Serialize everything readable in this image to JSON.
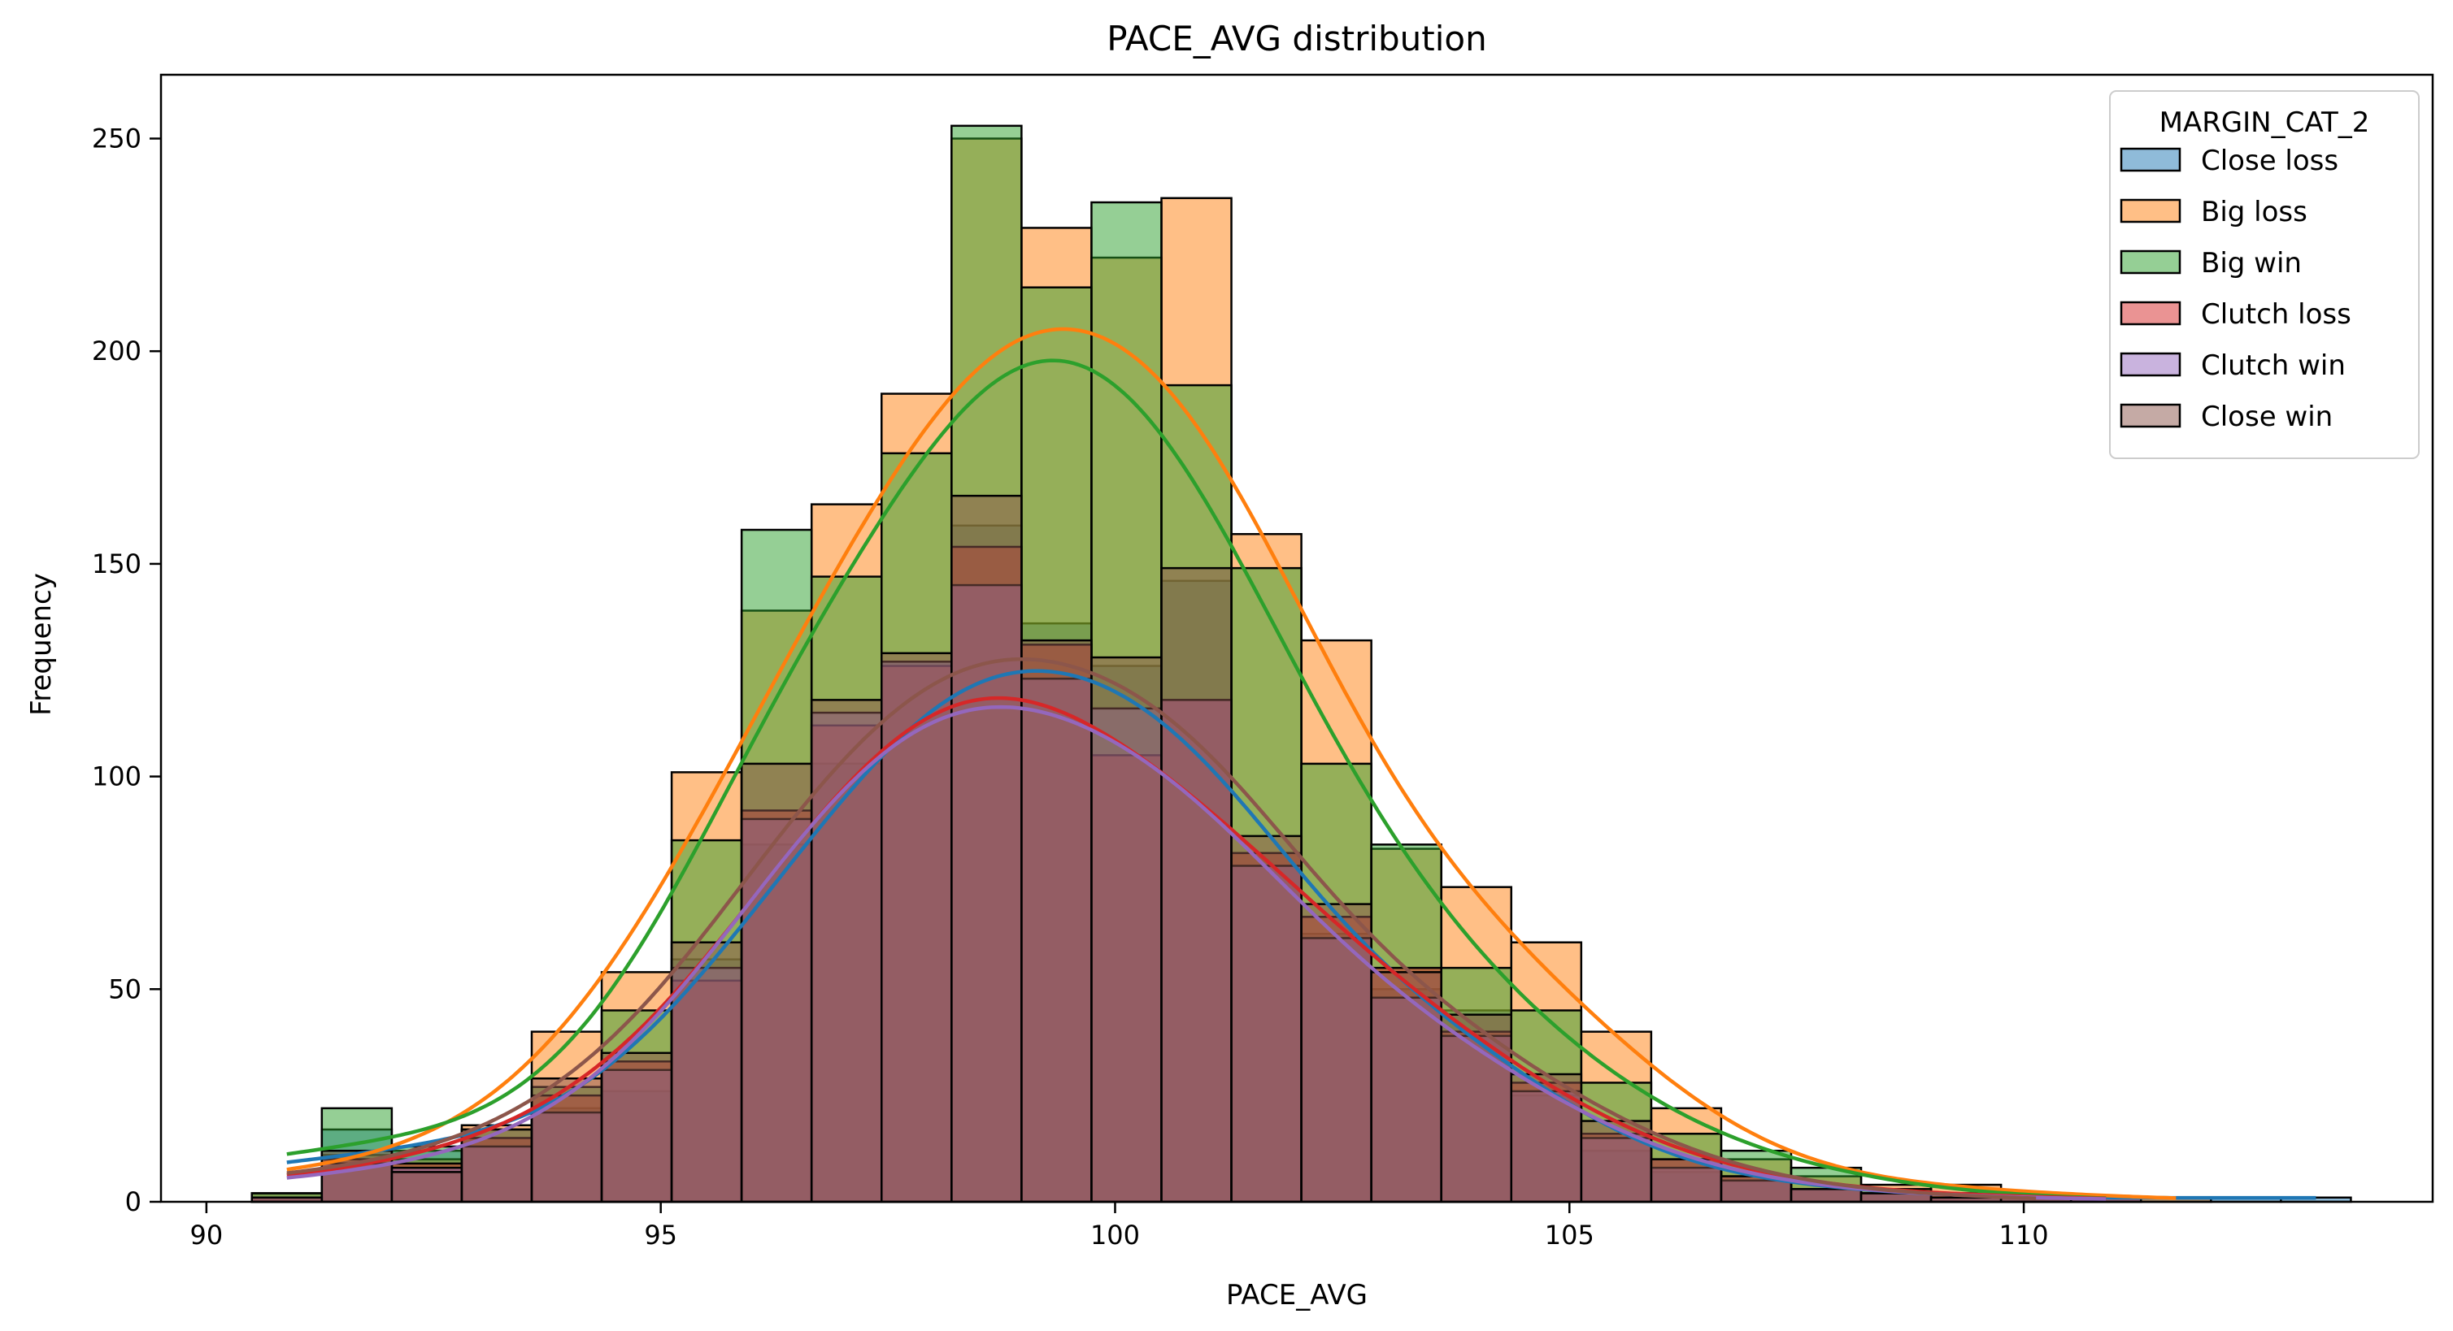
{
  "chart_data": {
    "type": "histogram",
    "title": "PACE_AVG distribution",
    "xlabel": "PACE_AVG",
    "ylabel": "Frequency",
    "xlim": [
      89.5,
      114.5
    ],
    "ylim": [
      0,
      265
    ],
    "xticks": [
      90,
      95,
      100,
      105,
      110
    ],
    "yticks": [
      0,
      50,
      100,
      150,
      200,
      250
    ],
    "grid": false,
    "kde": true,
    "legend": {
      "title": "MARGIN_CAT_2",
      "position": "top-right"
    },
    "bin_start": 90.5,
    "bin_width": 0.77,
    "series": [
      {
        "name": "Close loss",
        "color": "#1f77b4",
        "values": [
          2,
          17,
          12,
          15,
          22,
          26,
          57,
          84,
          103,
          127,
          159,
          136,
          126,
          146,
          82,
          63,
          50,
          45,
          25,
          12,
          7,
          5,
          3,
          2,
          1,
          1,
          1,
          1,
          1,
          1
        ]
      },
      {
        "name": "Big loss",
        "color": "#ff7f0e",
        "values": [
          2,
          11,
          10,
          18,
          40,
          54,
          101,
          139,
          164,
          190,
          250,
          229,
          222,
          236,
          157,
          132,
          83,
          74,
          61,
          40,
          22,
          10,
          6,
          4,
          4,
          2,
          1,
          1,
          0,
          0
        ]
      },
      {
        "name": "Big win",
        "color": "#2ca02c",
        "values": [
          2,
          22,
          13,
          17,
          27,
          45,
          85,
          158,
          147,
          176,
          253,
          215,
          235,
          192,
          149,
          103,
          84,
          55,
          45,
          28,
          16,
          12,
          8,
          3,
          2,
          1,
          1,
          0,
          0,
          0
        ]
      },
      {
        "name": "Clutch loss",
        "color": "#d62728",
        "values": [
          1,
          10,
          9,
          15,
          25,
          33,
          52,
          92,
          112,
          126,
          154,
          131,
          105,
          118,
          82,
          67,
          55,
          40,
          28,
          16,
          10,
          6,
          3,
          2,
          2,
          1,
          1,
          0,
          0,
          0
        ]
      },
      {
        "name": "Clutch win",
        "color": "#9467bd",
        "values": [
          1,
          9,
          8,
          13,
          21,
          31,
          55,
          90,
          115,
          127,
          145,
          123,
          116,
          118,
          79,
          62,
          48,
          39,
          26,
          15,
          8,
          5,
          3,
          2,
          1,
          1,
          1,
          0,
          0,
          0
        ]
      },
      {
        "name": "Close win",
        "color": "#8c564b",
        "values": [
          1,
          12,
          7,
          17,
          29,
          35,
          61,
          103,
          118,
          129,
          166,
          132,
          128,
          149,
          86,
          70,
          54,
          44,
          30,
          19,
          10,
          6,
          3,
          2,
          1,
          1,
          0,
          0,
          0,
          0
        ]
      }
    ]
  }
}
